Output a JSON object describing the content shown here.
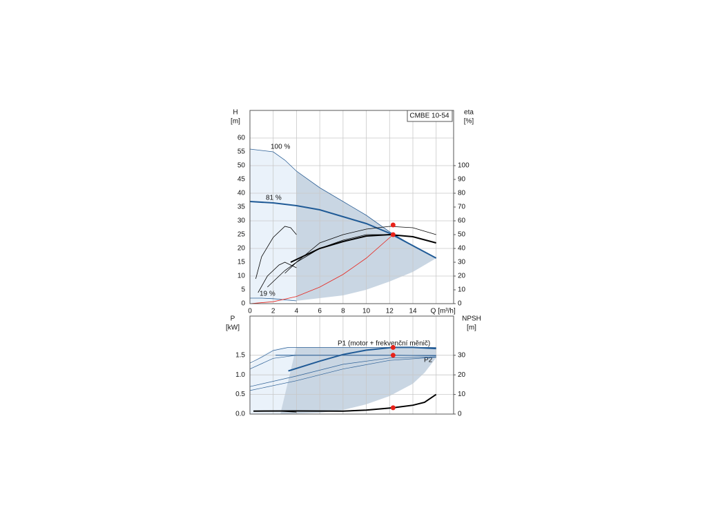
{
  "chart_data": [
    {
      "type": "line",
      "title": "CMBE 10-54",
      "ylabel": [
        "H",
        "[m]"
      ],
      "y2label": [
        "eta",
        "[%]"
      ],
      "xlim": [
        0,
        17.5
      ],
      "ylim": [
        0,
        70
      ],
      "y2lim": [
        0,
        140
      ],
      "xticks": [
        0,
        2,
        4,
        6,
        8,
        10,
        12,
        14,
        {
          "value": 16,
          "label": "Q [m³/h]"
        }
      ],
      "yticks": [
        0,
        5,
        10,
        15,
        20,
        25,
        30,
        35,
        40,
        45,
        50,
        55,
        60
      ],
      "y2ticks": [
        0,
        10,
        20,
        30,
        40,
        50,
        60,
        70,
        80,
        90,
        100
      ],
      "grid": true,
      "series": [
        {
          "name": "100 %",
          "color": "#2c5f95",
          "linewidth": 0.8,
          "x": [
            0,
            2,
            3,
            4,
            6,
            8,
            10,
            12,
            14,
            16
          ],
          "values": [
            56,
            55,
            52,
            48,
            42,
            37,
            32,
            26,
            21,
            16.5
          ]
        },
        {
          "name": "81 %",
          "color": "#1f5a96",
          "linewidth": 2,
          "x": [
            0,
            2,
            4,
            6,
            8,
            10,
            12,
            14,
            16
          ],
          "values": [
            37,
            36.5,
            35.5,
            34,
            31.5,
            29,
            25.5,
            21,
            16.5
          ]
        },
        {
          "name": "19 %",
          "color": "#2c5f95",
          "linewidth": 0.8,
          "x": [
            0,
            1,
            2,
            3,
            4
          ],
          "values": [
            2,
            2,
            1.8,
            1.4,
            1
          ]
        },
        {
          "color": "#000000",
          "linewidth": 2,
          "axis": "y2",
          "x": [
            3.5,
            4,
            6,
            8,
            10,
            12,
            14,
            16
          ],
          "values": [
            30,
            32,
            40,
            45,
            49,
            50,
            48.5,
            44
          ]
        },
        {
          "color": "#000000",
          "linewidth": 0.8,
          "axis": "y2",
          "x": [
            3,
            4,
            6,
            8,
            10,
            12,
            14,
            16
          ],
          "values": [
            22,
            30,
            44,
            50,
            54,
            56,
            55,
            50
          ]
        },
        {
          "color": "#000000",
          "linewidth": 0.8,
          "axis": "y2",
          "x": [
            0.5,
            1,
            2,
            3,
            3.5,
            4
          ],
          "values": [
            18,
            34,
            48,
            56,
            55,
            50
          ]
        },
        {
          "color": "#000000",
          "linewidth": 0.8,
          "axis": "y2",
          "x": [
            0.7,
            1.5,
            2.5,
            3,
            4
          ],
          "values": [
            8,
            20,
            28,
            30,
            26
          ]
        },
        {
          "color": "#000000",
          "linewidth": 0.8,
          "axis": "y2",
          "x": [
            1.5,
            3,
            4,
            6,
            8,
            10,
            12
          ],
          "values": [
            12,
            24,
            30,
            40,
            46,
            50,
            50
          ]
        },
        {
          "color": "#e8231a",
          "linewidth": 0.8,
          "x": [
            0,
            2,
            4,
            6,
            8,
            10,
            12.3
          ],
          "values": [
            0,
            0.7,
            2.6,
            6,
            10.6,
            16.5,
            25
          ]
        }
      ],
      "points": [
        {
          "x": 12.3,
          "y": 25,
          "color": "#e8231a"
        },
        {
          "x": 12.3,
          "y": 57,
          "axis": "y2",
          "color": "#e8231a"
        }
      ]
    },
    {
      "type": "line",
      "ylabel": [
        "P",
        "[kW]"
      ],
      "y2label": [
        "NPSH",
        "[m]"
      ],
      "xlim": [
        0,
        17.5
      ],
      "ylim": [
        0,
        2.5
      ],
      "y2lim": [
        0,
        50
      ],
      "yticks": [
        {
          "value": 0,
          "label": "0.0"
        },
        0.5,
        {
          "value": 1,
          "label": "1.0"
        },
        1.5
      ],
      "y2ticks": [
        0,
        10,
        20,
        30
      ],
      "grid": true,
      "series": [
        {
          "name": "P1 (motor + frekvenční měnič)",
          "color": "#1f5a96",
          "linewidth": 2,
          "x": [
            3.3,
            6,
            8,
            10,
            12.3,
            14,
            16
          ],
          "values": [
            1.1,
            1.35,
            1.52,
            1.63,
            1.7,
            1.7,
            1.67
          ]
        },
        {
          "name": "P2",
          "color": "#1f5a96",
          "linewidth": 1,
          "x": [
            2.2,
            4,
            8,
            12.3,
            16
          ],
          "values": [
            1.5,
            1.5,
            1.5,
            1.5,
            1.49
          ]
        },
        {
          "color": "#2c5f95",
          "linewidth": 0.7,
          "x": [
            0,
            1,
            2,
            3.3,
            8,
            16
          ],
          "values": [
            1.3,
            1.45,
            1.62,
            1.7,
            1.7,
            1.7
          ]
        },
        {
          "color": "#2c5f95",
          "linewidth": 0.7,
          "x": [
            0,
            2,
            4,
            8,
            16
          ],
          "values": [
            1.15,
            1.42,
            1.5,
            1.5,
            1.5
          ]
        },
        {
          "color": "#2c5f95",
          "linewidth": 0.7,
          "x": [
            0,
            4,
            8,
            12,
            16
          ],
          "values": [
            0.7,
            0.97,
            1.27,
            1.43,
            1.46
          ]
        },
        {
          "color": "#2c5f95",
          "linewidth": 0.7,
          "x": [
            0,
            4,
            8,
            12,
            16
          ],
          "values": [
            0.6,
            0.85,
            1.15,
            1.37,
            1.45
          ]
        },
        {
          "color": "#000000",
          "linewidth": 2,
          "axis": "y2",
          "x": [
            0.3,
            4,
            8,
            10,
            12.3,
            14,
            15,
            16
          ],
          "values": [
            1.5,
            1.6,
            1.5,
            2,
            3.2,
            4.5,
            6,
            10
          ]
        },
        {
          "color": "#000000",
          "linewidth": 0.8,
          "x": [
            0.3,
            2,
            4
          ],
          "values": [
            0.08,
            0.08,
            0.05
          ]
        }
      ],
      "points": [
        {
          "x": 12.3,
          "y": 1.7,
          "color": "#e8231a"
        },
        {
          "x": 12.3,
          "y": 1.5,
          "color": "#e8231a"
        },
        {
          "x": 12.3,
          "y": 3.2,
          "axis": "y2",
          "color": "#e8231a"
        }
      ]
    }
  ]
}
